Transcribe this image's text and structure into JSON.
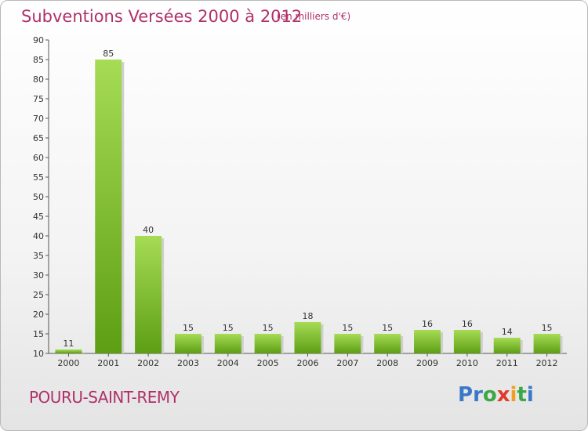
{
  "title": "Subventions Versées 2000 à 2012",
  "unit_note": "(en milliers d'€)",
  "commune": "POURU-SAINT-REMY",
  "brand": {
    "letters": [
      "P",
      "r",
      "o",
      "x",
      "i",
      "t",
      "i"
    ],
    "colors": [
      "#3a78c8",
      "#3a78c8",
      "#3aa845",
      "#e03a2a",
      "#f0a020",
      "#3aa845",
      "#3a78c8"
    ]
  },
  "colors": {
    "title": "#b0306a",
    "bar_top": "#a6dc55",
    "bar_bottom": "#5d9e14"
  },
  "chart_data": {
    "type": "bar",
    "title": "Subventions Versées 2000 à 2012",
    "xlabel": "",
    "ylabel": "",
    "categories": [
      "2000",
      "2001",
      "2002",
      "2003",
      "2004",
      "2005",
      "2006",
      "2007",
      "2008",
      "2009",
      "2010",
      "2011",
      "2012"
    ],
    "values": [
      11,
      85,
      40,
      15,
      15,
      15,
      18,
      15,
      15,
      16,
      16,
      14,
      15
    ],
    "ylim": [
      10,
      90
    ],
    "yticks": [
      10,
      15,
      20,
      25,
      30,
      35,
      40,
      45,
      50,
      55,
      60,
      65,
      70,
      75,
      80,
      85,
      90
    ],
    "grid": false,
    "legend": "none"
  }
}
